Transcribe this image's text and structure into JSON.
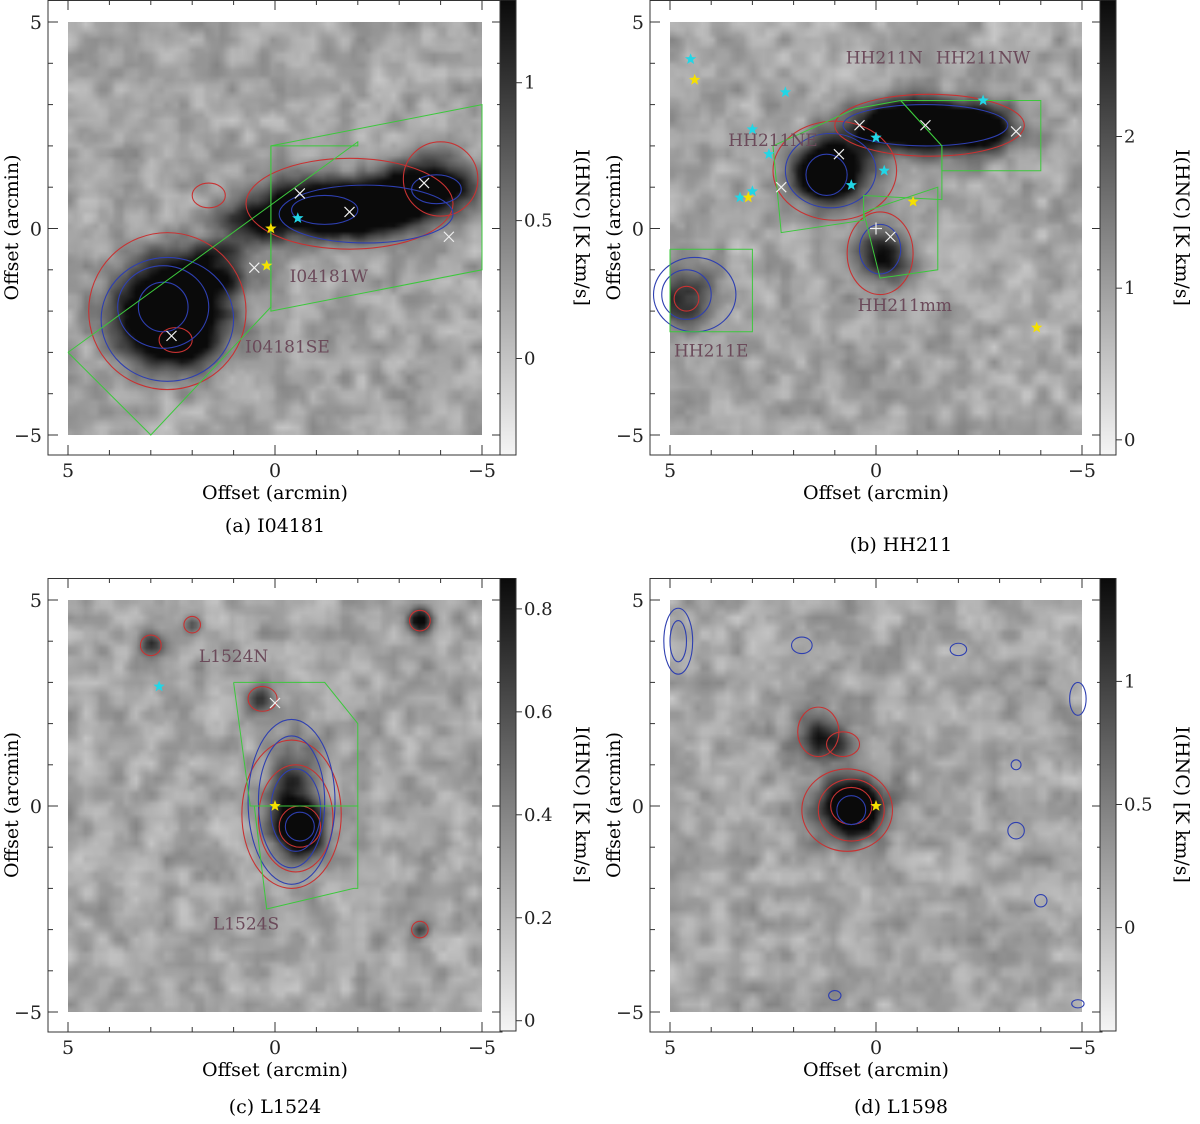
{
  "colors": {
    "red_contour": "#c83232",
    "blue_contour": "#2e3fb0",
    "green_region": "#3cc83c",
    "cyan_star": "#22d6e6",
    "yellow_star": "#f5e000",
    "region_label": "#6b4a5a"
  },
  "common": {
    "x_axis_label": "Offset (arcmin)",
    "y_axis_label": "Offset (arcmin)",
    "colorbar_label": "I(HNC) [K km/s]",
    "x_ticks": [
      "5",
      "0",
      "−5"
    ],
    "y_ticks": [
      "−5",
      "0",
      "5"
    ]
  },
  "chart_data": [
    {
      "type": "heatmap",
      "panel": "(a) I04181",
      "xlabel": "Offset (arcmin)",
      "ylabel": "Offset (arcmin)",
      "xlim": [
        5,
        -5
      ],
      "ylim": [
        -5,
        5
      ],
      "colorbar": {
        "label": "I(HNC) [K km/s]",
        "range": [
          -0.35,
          1.3
        ],
        "ticks": [
          "0",
          "0.5",
          "1"
        ],
        "tick_values": [
          0,
          0.5,
          1
        ]
      },
      "regions": [
        {
          "name": "I04181SE",
          "polygon": [
            [
              5,
              -3
            ],
            [
              3,
              -5
            ],
            [
              0.1,
              -1.9
            ],
            [
              0.1,
              2
            ],
            [
              -2,
              2
            ],
            [
              -2,
              2.1
            ],
            [
              5,
              -3
            ]
          ]
        },
        {
          "name": "I04181W",
          "polygon": [
            [
              0.1,
              2
            ],
            [
              0.1,
              -2
            ],
            [
              -5,
              -1
            ],
            [
              -5,
              3
            ],
            [
              0.1,
              2
            ]
          ]
        }
      ],
      "region_labels": [
        {
          "text": "I04181SE",
          "x": -0.3,
          "y": -3
        },
        {
          "text": "I04181W",
          "x": -1.3,
          "y": -1.3
        }
      ],
      "blobs": [
        {
          "x": 2.6,
          "y": -1.9,
          "sx": 0.9,
          "sy": 0.8,
          "a": 1.0
        },
        {
          "x": 2.4,
          "y": -2.6,
          "sx": 0.6,
          "sy": 0.5,
          "a": 0.7
        },
        {
          "x": 1.5,
          "y": -1.0,
          "sx": 0.6,
          "sy": 0.5,
          "a": 0.5
        },
        {
          "x": -0.8,
          "y": 0.5,
          "sx": 0.9,
          "sy": 0.45,
          "a": 0.9
        },
        {
          "x": -1.7,
          "y": 0.4,
          "sx": 0.6,
          "sy": 0.4,
          "a": 0.9
        },
        {
          "x": -2.8,
          "y": 0.6,
          "sx": 0.6,
          "sy": 0.45,
          "a": 0.85
        },
        {
          "x": -3.8,
          "y": 1.0,
          "sx": 0.7,
          "sy": 0.45,
          "a": 0.95
        },
        {
          "x": 0.6,
          "y": 0.1,
          "sx": 0.5,
          "sy": 0.4,
          "a": 0.5
        }
      ],
      "blue_contours": [
        {
          "x": 2.7,
          "y": -1.9,
          "rx": 0.6,
          "ry": 0.6
        },
        {
          "x": 2.7,
          "y": -1.9,
          "rx": 1.1,
          "ry": 1.0
        },
        {
          "x": 2.6,
          "y": -2.2,
          "rx": 1.6,
          "ry": 1.5
        },
        {
          "x": -1.2,
          "y": 0.45,
          "rx": 0.8,
          "ry": 0.35
        },
        {
          "x": -2.2,
          "y": 0.35,
          "rx": 2.1,
          "ry": 0.7
        },
        {
          "x": -3.9,
          "y": 0.95,
          "rx": 0.6,
          "ry": 0.35
        }
      ],
      "red_contours": [
        {
          "x": 2.6,
          "y": -2.0,
          "rx": 1.9,
          "ry": 1.9
        },
        {
          "x": 2.4,
          "y": -2.7,
          "rx": 0.4,
          "ry": 0.3
        },
        {
          "x": -1.8,
          "y": 0.6,
          "rx": 2.5,
          "ry": 1.1
        },
        {
          "x": -4.0,
          "y": 1.2,
          "rx": 0.9,
          "ry": 0.9
        },
        {
          "x": 1.6,
          "y": 0.8,
          "rx": 0.4,
          "ry": 0.3
        }
      ],
      "cross_markers": [
        [
          2.5,
          -2.6
        ],
        [
          0.5,
          -0.95
        ],
        [
          -0.6,
          0.85
        ],
        [
          -1.8,
          0.4
        ],
        [
          -3.6,
          1.1
        ],
        [
          -4.2,
          -0.2
        ]
      ],
      "cyan_stars": [
        [
          -0.55,
          0.25
        ],
        [
          0.2,
          -0.9
        ]
      ],
      "yellow_stars": [
        [
          0.1,
          0.0
        ],
        [
          0.2,
          -0.9
        ]
      ]
    },
    {
      "type": "heatmap",
      "panel": "(b) HH211",
      "xlabel": "Offset (arcmin)",
      "ylabel": "Offset (arcmin)",
      "xlim": [
        5,
        -5
      ],
      "ylim": [
        -5,
        5
      ],
      "colorbar": {
        "label": "I(HNC) [K km/s]",
        "range": [
          -0.1,
          2.9
        ],
        "ticks": [
          "0",
          "1",
          "2"
        ],
        "tick_values": [
          0,
          1,
          2
        ]
      },
      "regions": [
        {
          "name": "HH211N",
          "polygon": [
            [
              -0.6,
              3.1
            ],
            [
              0.5,
              2.9
            ],
            [
              2.5,
              2.0
            ],
            [
              2.3,
              -0.1
            ],
            [
              0.3,
              0.2
            ],
            [
              0.3,
              0.8
            ],
            [
              -1.6,
              0.7
            ],
            [
              -1.6,
              2.0
            ],
            [
              -0.6,
              3.1
            ]
          ]
        },
        {
          "name": "HH211NW",
          "polygon": [
            [
              -0.6,
              3.1
            ],
            [
              -1.6,
              2.0
            ],
            [
              -1.6,
              1.4
            ],
            [
              -4,
              1.4
            ],
            [
              -4,
              3.1
            ],
            [
              -0.6,
              3.1
            ]
          ]
        },
        {
          "name": "HH211mm",
          "polygon": [
            [
              0.3,
              0.4
            ],
            [
              -1.5,
              1.0
            ],
            [
              -1.5,
              -1.0
            ],
            [
              -0.1,
              -1.2
            ],
            [
              0.3,
              0.4
            ]
          ]
        },
        {
          "name": "HH211E",
          "polygon": [
            [
              5,
              -0.5
            ],
            [
              3,
              -0.5
            ],
            [
              3,
              -2.5
            ],
            [
              5,
              -2.5
            ],
            [
              5,
              -0.5
            ]
          ]
        }
      ],
      "region_labels": [
        {
          "text": "HH211N",
          "x": -0.2,
          "y": 4.0
        },
        {
          "text": "HH211NW",
          "x": -2.6,
          "y": 4.0
        },
        {
          "text": "HH211NE",
          "x": 2.5,
          "y": 2.0
        },
        {
          "text": "HH211mm",
          "x": -0.7,
          "y": -2.0
        },
        {
          "text": "HH211E",
          "x": 4.0,
          "y": -3.1
        }
      ],
      "blobs": [
        {
          "x": 1.3,
          "y": 1.3,
          "sx": 0.45,
          "sy": 0.45,
          "a": 1.0
        },
        {
          "x": 0.8,
          "y": 1.5,
          "sx": 0.6,
          "sy": 0.5,
          "a": 0.6
        },
        {
          "x": -0.3,
          "y": 2.5,
          "sx": 0.8,
          "sy": 0.4,
          "a": 0.7
        },
        {
          "x": -1.5,
          "y": 2.5,
          "sx": 0.9,
          "sy": 0.4,
          "a": 0.9
        },
        {
          "x": -2.6,
          "y": 2.4,
          "sx": 0.6,
          "sy": 0.35,
          "a": 0.7
        },
        {
          "x": -0.1,
          "y": -0.6,
          "sx": 0.45,
          "sy": 0.45,
          "a": 0.7
        },
        {
          "x": 4.6,
          "y": -1.7,
          "sx": 0.5,
          "sy": 0.5,
          "a": 0.5
        }
      ],
      "blue_contours": [
        {
          "x": 1.2,
          "y": 1.3,
          "rx": 0.5,
          "ry": 0.5
        },
        {
          "x": 1.1,
          "y": 1.4,
          "rx": 1.1,
          "ry": 0.9
        },
        {
          "x": -1.2,
          "y": 2.5,
          "rx": 2.0,
          "ry": 0.5
        },
        {
          "x": -0.1,
          "y": -0.5,
          "rx": 0.5,
          "ry": 0.6
        },
        {
          "x": 4.6,
          "y": -1.6,
          "rx": 0.6,
          "ry": 0.6
        },
        {
          "x": 4.4,
          "y": -1.6,
          "rx": 1.0,
          "ry": 0.9
        }
      ],
      "red_contours": [
        {
          "x": 1.0,
          "y": 1.4,
          "rx": 1.5,
          "ry": 1.2
        },
        {
          "x": -1.3,
          "y": 2.5,
          "rx": 2.3,
          "ry": 0.75
        },
        {
          "x": -0.1,
          "y": -0.6,
          "rx": 0.8,
          "ry": 1.0
        },
        {
          "x": 4.6,
          "y": -1.7,
          "rx": 0.3,
          "ry": 0.3
        }
      ],
      "cross_markers": [
        [
          2.3,
          1.0
        ],
        [
          0.9,
          1.8
        ],
        [
          0.4,
          2.5
        ],
        [
          -1.2,
          2.5
        ],
        [
          -3.4,
          2.35
        ],
        [
          -0.35,
          -0.2
        ]
      ],
      "plus_markers": [
        [
          0.0,
          0.0
        ]
      ],
      "cyan_stars": [
        [
          4.5,
          4.1
        ],
        [
          2.2,
          3.3
        ],
        [
          3.0,
          2.4
        ],
        [
          2.6,
          1.8
        ],
        [
          0.0,
          2.2
        ],
        [
          -0.2,
          1.4
        ],
        [
          0.6,
          1.05
        ],
        [
          3.0,
          0.9
        ],
        [
          3.3,
          0.75
        ],
        [
          -2.6,
          3.1
        ]
      ],
      "yellow_stars": [
        [
          4.4,
          3.6
        ],
        [
          3.1,
          0.75
        ],
        [
          -0.9,
          0.65
        ],
        [
          -3.9,
          -2.4
        ]
      ]
    },
    {
      "type": "heatmap",
      "panel": "(c) L1524",
      "xlabel": "Offset (arcmin)",
      "ylabel": "Offset (arcmin)",
      "xlim": [
        5,
        -5
      ],
      "ylim": [
        -5,
        5
      ],
      "colorbar": {
        "label": "I(HNC) [K km/s]",
        "range": [
          -0.02,
          0.86
        ],
        "ticks": [
          "0",
          "0.2",
          "0.4",
          "0.6",
          "0.8"
        ],
        "tick_values": [
          0,
          0.2,
          0.4,
          0.6,
          0.8
        ]
      },
      "regions": [
        {
          "name": "L1524N",
          "polygon": [
            [
              1.0,
              3.0
            ],
            [
              -1.2,
              3.0
            ],
            [
              -2.0,
              2.0
            ],
            [
              -2.0,
              0.0
            ],
            [
              0.6,
              0.0
            ],
            [
              1.0,
              3.0
            ]
          ]
        },
        {
          "name": "L1524S",
          "polygon": [
            [
              0.5,
              0.0
            ],
            [
              -2.0,
              0.0
            ],
            [
              -2.0,
              -2.0
            ],
            [
              -1.9,
              -2.0
            ],
            [
              0.2,
              -2.5
            ],
            [
              0.5,
              0.0
            ]
          ]
        }
      ],
      "region_labels": [
        {
          "text": "L1524N",
          "x": 1.0,
          "y": 3.5
        },
        {
          "text": "L1524S",
          "x": 0.7,
          "y": -3.0
        }
      ],
      "blobs": [
        {
          "x": -0.6,
          "y": -0.5,
          "sx": 0.4,
          "sy": 0.45,
          "a": 1.0
        },
        {
          "x": -0.4,
          "y": 0.3,
          "sx": 0.4,
          "sy": 0.9,
          "a": 0.45
        },
        {
          "x": 0.4,
          "y": 2.6,
          "sx": 0.25,
          "sy": 0.25,
          "a": 0.45
        },
        {
          "x": 3.0,
          "y": 3.9,
          "sx": 0.2,
          "sy": 0.2,
          "a": 0.55
        },
        {
          "x": 2.0,
          "y": 4.4,
          "sx": 0.15,
          "sy": 0.15,
          "a": 0.4
        },
        {
          "x": -3.5,
          "y": 4.5,
          "sx": 0.2,
          "sy": 0.2,
          "a": 0.9
        },
        {
          "x": -3.5,
          "y": -3.0,
          "sx": 0.15,
          "sy": 0.15,
          "a": 0.45
        }
      ],
      "blue_contours": [
        {
          "x": -0.6,
          "y": -0.5,
          "rx": 0.35,
          "ry": 0.35
        },
        {
          "x": -0.5,
          "y": -0.1,
          "rx": 0.6,
          "ry": 1.0
        },
        {
          "x": -0.4,
          "y": 0.1,
          "rx": 0.8,
          "ry": 1.6
        },
        {
          "x": -0.4,
          "y": 0.1,
          "rx": 1.05,
          "ry": 2.0
        }
      ],
      "red_contours": [
        {
          "x": -0.6,
          "y": -0.5,
          "rx": 0.5,
          "ry": 0.5
        },
        {
          "x": -0.5,
          "y": -0.3,
          "rx": 0.9,
          "ry": 1.3
        },
        {
          "x": -0.4,
          "y": -0.2,
          "rx": 1.2,
          "ry": 1.8
        },
        {
          "x": 0.3,
          "y": 2.6,
          "rx": 0.35,
          "ry": 0.3
        },
        {
          "x": 3.0,
          "y": 3.9,
          "rx": 0.25,
          "ry": 0.25
        },
        {
          "x": 2.0,
          "y": 4.4,
          "rx": 0.2,
          "ry": 0.2
        },
        {
          "x": -3.5,
          "y": 4.5,
          "rx": 0.25,
          "ry": 0.25
        },
        {
          "x": -3.5,
          "y": -3.0,
          "rx": 0.2,
          "ry": 0.2
        }
      ],
      "cross_markers": [
        [
          0.0,
          2.5
        ]
      ],
      "cyan_stars": [
        [
          2.8,
          2.9
        ]
      ],
      "yellow_stars": [
        [
          0.0,
          0.0
        ]
      ]
    },
    {
      "type": "heatmap",
      "panel": "(d) L1598",
      "xlabel": "Offset (arcmin)",
      "ylabel": "Offset (arcmin)",
      "xlim": [
        5,
        -5
      ],
      "ylim": [
        -5,
        5
      ],
      "colorbar": {
        "label": "I(HNC) [K km/s]",
        "range": [
          -0.42,
          1.42
        ],
        "ticks": [
          "0",
          "0.5",
          "1"
        ],
        "tick_values": [
          0,
          0.5,
          1
        ]
      },
      "regions": [],
      "region_labels": [],
      "blobs": [
        {
          "x": 0.55,
          "y": 0.0,
          "sx": 0.35,
          "sy": 0.35,
          "a": 1.0
        },
        {
          "x": 0.6,
          "y": -0.1,
          "sx": 0.7,
          "sy": 0.6,
          "a": 0.55
        },
        {
          "x": 1.5,
          "y": 1.7,
          "sx": 0.4,
          "sy": 0.5,
          "a": 0.45
        },
        {
          "x": 0.9,
          "y": 1.5,
          "sx": 0.3,
          "sy": 0.3,
          "a": 0.4
        }
      ],
      "blue_contours": [
        {
          "x": 0.6,
          "y": -0.1,
          "rx": 0.35,
          "ry": 0.35
        },
        {
          "x": 4.8,
          "y": 4.0,
          "rx": 0.2,
          "ry": 0.5
        },
        {
          "x": 4.8,
          "y": 4.0,
          "rx": 0.35,
          "ry": 0.8
        },
        {
          "x": 1.8,
          "y": 3.9,
          "rx": 0.25,
          "ry": 0.2
        },
        {
          "x": -2.0,
          "y": 3.8,
          "rx": 0.2,
          "ry": 0.15
        },
        {
          "x": -3.4,
          "y": 1.0,
          "rx": 0.12,
          "ry": 0.12
        },
        {
          "x": -3.4,
          "y": -0.6,
          "rx": 0.2,
          "ry": 0.2
        },
        {
          "x": -4.0,
          "y": -2.3,
          "rx": 0.15,
          "ry": 0.15
        },
        {
          "x": -4.9,
          "y": 2.6,
          "rx": 0.2,
          "ry": 0.4
        },
        {
          "x": 1.0,
          "y": -4.6,
          "rx": 0.15,
          "ry": 0.12
        },
        {
          "x": -4.9,
          "y": -4.8,
          "rx": 0.15,
          "ry": 0.1
        }
      ],
      "red_contours": [
        {
          "x": 0.6,
          "y": 0.0,
          "rx": 0.5,
          "ry": 0.45
        },
        {
          "x": 0.6,
          "y": -0.1,
          "rx": 0.8,
          "ry": 0.75
        },
        {
          "x": 0.7,
          "y": -0.1,
          "rx": 1.1,
          "ry": 1.0
        },
        {
          "x": 1.4,
          "y": 1.8,
          "rx": 0.5,
          "ry": 0.6
        },
        {
          "x": 0.8,
          "y": 1.5,
          "rx": 0.4,
          "ry": 0.3
        }
      ],
      "cross_markers": [],
      "cyan_stars": [],
      "yellow_stars": [
        [
          0.0,
          0.0
        ]
      ]
    }
  ]
}
